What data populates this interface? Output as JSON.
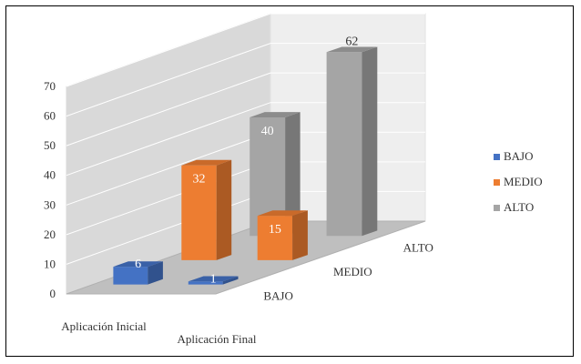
{
  "chart_data": {
    "type": "bar",
    "variant": "3d-column",
    "categories": [
      "Aplicación Inicial",
      "Aplicación Final"
    ],
    "depth_categories": [
      "BAJO",
      "MEDIO",
      "ALTO"
    ],
    "series": [
      {
        "name": "BAJO",
        "values": [
          6,
          1
        ],
        "color": "#4472C4"
      },
      {
        "name": "MEDIO",
        "values": [
          32,
          15
        ],
        "color": "#ED7D31"
      },
      {
        "name": "ALTO",
        "values": [
          40,
          62
        ],
        "color": "#A5A5A5"
      }
    ],
    "title": "",
    "xlabel": "",
    "ylabel": "",
    "ylim": [
      0,
      70
    ],
    "yticks": [
      "0",
      "10",
      "20",
      "30",
      "40",
      "50",
      "60",
      "70"
    ],
    "grid": true,
    "data_labels": true,
    "legend": {
      "position": "right",
      "entries": [
        "BAJO",
        "MEDIO",
        "ALTO"
      ]
    }
  }
}
